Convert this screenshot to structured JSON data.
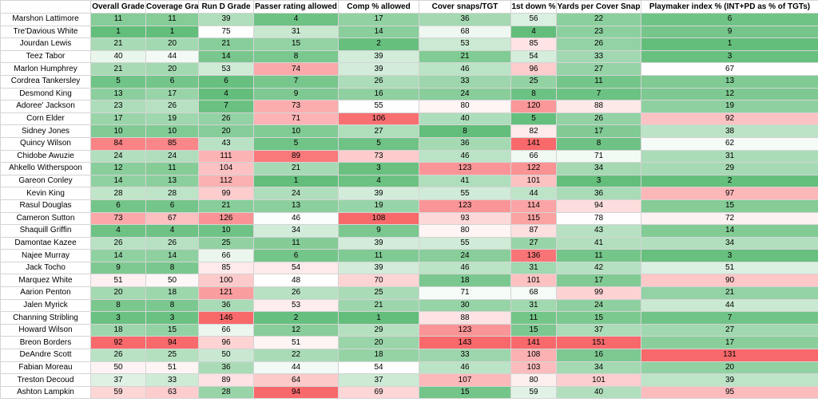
{
  "headers": [
    "",
    "Overall Grade",
    "Coverage Grade",
    "Run D Grade",
    "Passer rating allowed",
    "Comp % allowed",
    "Cover snaps/TGT",
    "1st down %",
    "Yards per Cover Snap",
    "Playmaker index % (INT+PD as % of TGTs)"
  ],
  "color_scale": {
    "low": "#63BE7B",
    "mid": "#FFFFFF",
    "high": "#F8696B"
  },
  "rows": [
    {
      "name": "Marshon Lattimore",
      "values": [
        11,
        11,
        39,
        4,
        17,
        36,
        56,
        22,
        6
      ]
    },
    {
      "name": "Tre'Davious White",
      "values": [
        1,
        1,
        75,
        31,
        14,
        68,
        4,
        23,
        9
      ]
    },
    {
      "name": "Jourdan Lewis",
      "values": [
        21,
        20,
        21,
        15,
        2,
        53,
        85,
        26,
        1
      ]
    },
    {
      "name": "Teez Tabor",
      "values": [
        40,
        44,
        14,
        8,
        39,
        21,
        54,
        33,
        3
      ]
    },
    {
      "name": "Marlon Humphrey",
      "values": [
        21,
        20,
        53,
        74,
        39,
        46,
        96,
        27,
        67
      ]
    },
    {
      "name": "Cordrea Tankersley",
      "values": [
        5,
        6,
        6,
        7,
        26,
        33,
        25,
        11,
        13
      ]
    },
    {
      "name": "Desmond King",
      "values": [
        13,
        17,
        4,
        9,
        16,
        24,
        8,
        7,
        12
      ]
    },
    {
      "name": "Adoree' Jackson",
      "values": [
        23,
        26,
        7,
        73,
        55,
        80,
        120,
        88,
        19
      ]
    },
    {
      "name": "Corn Elder",
      "values": [
        17,
        19,
        26,
        71,
        106,
        40,
        5,
        26,
        92
      ]
    },
    {
      "name": "Sidney Jones",
      "values": [
        10,
        10,
        20,
        10,
        27,
        8,
        82,
        17,
        38
      ]
    },
    {
      "name": "Quincy Wilson",
      "values": [
        84,
        85,
        43,
        5,
        5,
        36,
        141,
        8,
        62
      ]
    },
    {
      "name": "Chidobe Awuzie",
      "values": [
        24,
        24,
        111,
        89,
        73,
        46,
        66,
        71,
        31
      ]
    },
    {
      "name": "Ahkello Witherspoon",
      "values": [
        12,
        11,
        104,
        21,
        3,
        123,
        122,
        34,
        29
      ]
    },
    {
      "name": "Gareon Conley",
      "values": [
        14,
        13,
        112,
        1,
        4,
        41,
        101,
        3,
        2
      ]
    },
    {
      "name": "Kevin King",
      "values": [
        28,
        28,
        99,
        24,
        39,
        55,
        44,
        36,
        97
      ]
    },
    {
      "name": "Rasul Douglas",
      "values": [
        6,
        6,
        21,
        13,
        19,
        123,
        114,
        94,
        15
      ]
    },
    {
      "name": "Cameron Sutton",
      "values": [
        73,
        67,
        126,
        46,
        108,
        93,
        115,
        78,
        72
      ]
    },
    {
      "name": "Shaquill Griffin",
      "values": [
        4,
        4,
        10,
        34,
        9,
        80,
        87,
        43,
        14
      ]
    },
    {
      "name": "Damontae Kazee",
      "values": [
        26,
        26,
        25,
        11,
        39,
        55,
        27,
        41,
        34
      ]
    },
    {
      "name": "Najee Murray",
      "values": [
        14,
        14,
        66,
        6,
        11,
        24,
        136,
        11,
        3
      ]
    },
    {
      "name": "Jack Tocho",
      "values": [
        9,
        8,
        85,
        54,
        39,
        46,
        31,
        42,
        51
      ]
    },
    {
      "name": "Marquez White",
      "values": [
        51,
        50,
        100,
        48,
        70,
        18,
        101,
        17,
        90
      ]
    },
    {
      "name": "Aarion Penton",
      "values": [
        20,
        18,
        121,
        26,
        25,
        71,
        68,
        99,
        21
      ]
    },
    {
      "name": "Jalen Myrick",
      "values": [
        8,
        8,
        36,
        53,
        21,
        30,
        31,
        24,
        44
      ]
    },
    {
      "name": "Channing Stribling",
      "values": [
        3,
        3,
        146,
        2,
        1,
        88,
        11,
        15,
        7
      ]
    },
    {
      "name": "Howard Wilson",
      "values": [
        18,
        15,
        66,
        12,
        29,
        123,
        15,
        37,
        27
      ]
    },
    {
      "name": "Breon Borders",
      "values": [
        92,
        94,
        96,
        51,
        20,
        143,
        141,
        151,
        17
      ]
    },
    {
      "name": "DeAndre Scott",
      "values": [
        26,
        25,
        50,
        22,
        18,
        33,
        108,
        16,
        131
      ]
    },
    {
      "name": "Fabian Moreau",
      "values": [
        50,
        51,
        36,
        44,
        54,
        46,
        103,
        34,
        20
      ]
    },
    {
      "name": "Treston Decoud",
      "values": [
        37,
        33,
        89,
        64,
        37,
        107,
        80,
        101,
        39
      ]
    },
    {
      "name": "Ashton Lampkin",
      "values": [
        59,
        63,
        28,
        94,
        69,
        15,
        59,
        40,
        95
      ]
    }
  ]
}
